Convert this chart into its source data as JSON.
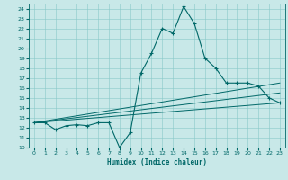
{
  "title": "",
  "xlabel": "Humidex (Indice chaleur)",
  "ylabel": "",
  "bg_color": "#c8e8e8",
  "grid_color": "#88c8c8",
  "line_color": "#006868",
  "xlim": [
    -0.5,
    23.5
  ],
  "ylim": [
    10,
    24.5
  ],
  "xticks": [
    0,
    1,
    2,
    3,
    4,
    5,
    6,
    7,
    8,
    9,
    10,
    11,
    12,
    13,
    14,
    15,
    16,
    17,
    18,
    19,
    20,
    21,
    22,
    23
  ],
  "yticks": [
    10,
    11,
    12,
    13,
    14,
    15,
    16,
    17,
    18,
    19,
    20,
    21,
    22,
    23,
    24
  ],
  "series1_x": [
    0,
    1,
    2,
    3,
    4,
    5,
    6,
    7,
    8,
    9,
    10,
    11,
    12,
    13,
    14,
    15,
    16,
    17,
    18,
    19,
    20,
    21,
    22,
    23
  ],
  "series1_y": [
    12.5,
    12.5,
    11.8,
    12.2,
    12.3,
    12.2,
    12.5,
    12.5,
    10.0,
    11.5,
    17.5,
    19.5,
    22.0,
    21.5,
    24.2,
    22.5,
    19.0,
    18.0,
    16.5,
    16.5,
    16.5,
    16.2,
    15.0,
    14.5
  ],
  "series2_x": [
    0,
    23
  ],
  "series2_y": [
    12.5,
    16.5
  ],
  "series3_x": [
    0,
    23
  ],
  "series3_y": [
    12.5,
    15.5
  ],
  "series4_x": [
    0,
    23
  ],
  "series4_y": [
    12.5,
    14.5
  ]
}
